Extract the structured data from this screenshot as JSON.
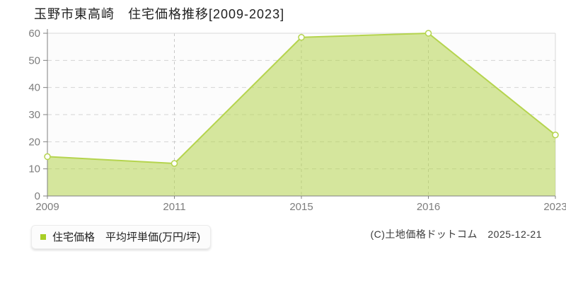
{
  "title": "玉野市東高崎　住宅価格推移[2009-2023]",
  "chart_data": {
    "type": "area",
    "title": "玉野市東高崎　住宅価格推移[2009-2023]",
    "categories": [
      "2009",
      "2011",
      "2015",
      "2016",
      "2023"
    ],
    "series": [
      {
        "name": "住宅価格　平均坪単価(万円/坪)",
        "values": [
          14.5,
          12,
          58.5,
          60,
          22.5
        ]
      }
    ],
    "xlabel": "",
    "ylabel": "平均坪単価(万円/坪)",
    "ylim": [
      0,
      60
    ],
    "yticks": [
      0,
      10,
      20,
      30,
      40,
      50,
      60
    ],
    "grid": "horizontal-dashed-plus-category-verticals",
    "legend_position": "bottom-left",
    "fill_opacity": 0.55,
    "colors": {
      "line": "#b5d44e",
      "fill": "#b5d44e",
      "marker_fill": "#ffffff",
      "grid": "#d4d4d4",
      "drop_line": "#c8c8c8",
      "plot_border": "#d9d9d9",
      "plot_background": "#fcfcfc",
      "axis": "#808080",
      "tick_label": "#7d7d7d"
    }
  },
  "legend": {
    "label": "住宅価格　平均坪単価(万円/坪)",
    "marker_color": "#a8ce26"
  },
  "footer": {
    "copyright": "(C)土地価格ドットコム　2025-12-21"
  }
}
